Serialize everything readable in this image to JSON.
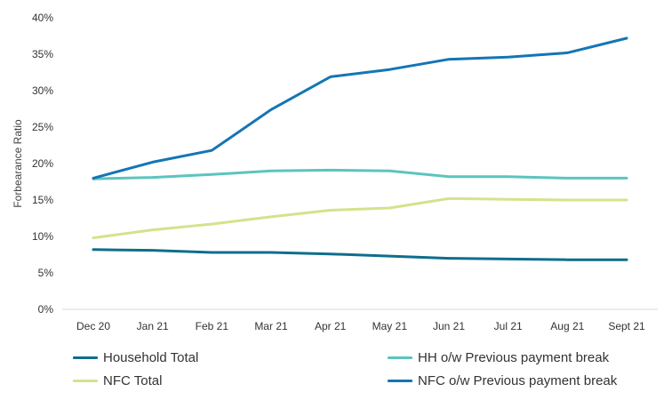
{
  "chart_data": {
    "type": "line",
    "title": "",
    "xlabel": "",
    "ylabel": "Forbearance Ratio",
    "ylim": [
      0,
      40
    ],
    "yticks": [
      "0%",
      "5%",
      "10%",
      "15%",
      "20%",
      "25%",
      "30%",
      "35%",
      "40%"
    ],
    "ytick_values": [
      0,
      5,
      10,
      15,
      20,
      25,
      30,
      35,
      40
    ],
    "categories": [
      "Dec 20",
      "Jan 21",
      "Feb 21",
      "Mar 21",
      "Apr 21",
      "May 21",
      "Jun 21",
      "Jul 21",
      "Aug 21",
      "Sept 21"
    ],
    "grid": false,
    "legend_position": "bottom",
    "series": [
      {
        "name": "Household Total",
        "color": "#0f6e8c",
        "values": [
          8.2,
          8.1,
          7.8,
          7.8,
          7.6,
          7.3,
          7.0,
          6.9,
          6.8,
          6.8
        ]
      },
      {
        "name": "HH o/w Previous payment break",
        "color": "#5cc4be",
        "values": [
          17.9,
          18.1,
          18.5,
          19.0,
          19.1,
          19.0,
          18.2,
          18.2,
          18.0,
          18.0
        ]
      },
      {
        "name": "NFC Total",
        "color": "#d3e38c",
        "values": [
          9.8,
          10.9,
          11.7,
          12.7,
          13.6,
          13.9,
          15.2,
          15.1,
          15.0,
          15.0
        ]
      },
      {
        "name": "NFC o/w Previous payment break",
        "color": "#1475b5",
        "values": [
          18.0,
          20.2,
          21.8,
          27.4,
          31.9,
          32.9,
          34.3,
          34.6,
          35.2,
          37.2
        ]
      }
    ]
  }
}
